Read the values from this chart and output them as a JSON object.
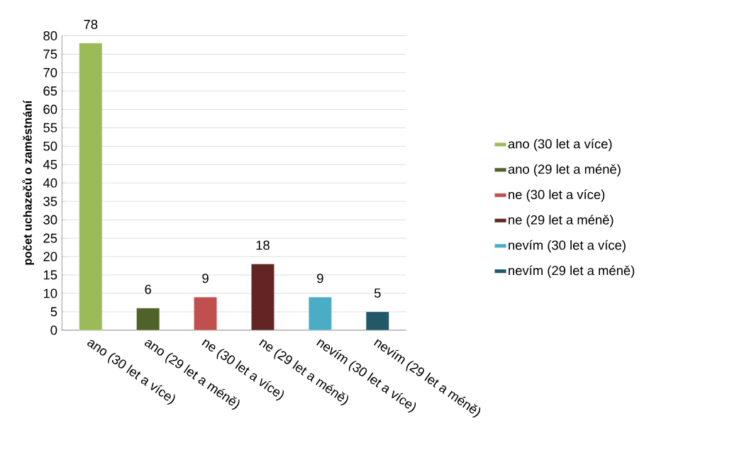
{
  "chart_data": {
    "type": "bar",
    "ylabel": "počet uchazečů o zaměstnání",
    "categories": [
      "ano (30 let a více)",
      "ano (29 let a méně)",
      "ne (30 let a více)",
      "ne (29 let a méně)",
      "nevím (30 let a více)",
      "nevím (29 let a méně)"
    ],
    "series": [
      {
        "name": "ano (30 let a více)",
        "color": "#9bbb59",
        "values": [
          78,
          null,
          null,
          null,
          null,
          null
        ]
      },
      {
        "name": "ano (29 let a méně)",
        "color": "#4f6228",
        "values": [
          null,
          6,
          null,
          null,
          null,
          null
        ]
      },
      {
        "name": "ne (30 let a více)",
        "color": "#c0504d",
        "values": [
          null,
          null,
          9,
          null,
          null,
          null
        ]
      },
      {
        "name": "ne (29 let a méně)",
        "color": "#632523",
        "values": [
          null,
          null,
          null,
          18,
          null,
          null
        ]
      },
      {
        "name": "nevím (30 let a více)",
        "color": "#4bacc6",
        "values": [
          null,
          null,
          null,
          null,
          9,
          null
        ]
      },
      {
        "name": "nevím (29 let a méně)",
        "color": "#215968",
        "values": [
          null,
          null,
          null,
          null,
          null,
          5
        ]
      }
    ],
    "ylim": [
      0,
      80
    ],
    "yticks": [
      0,
      5,
      10,
      15,
      20,
      25,
      30,
      35,
      40,
      45,
      50,
      55,
      60,
      65,
      70,
      75,
      80
    ],
    "grid": "y",
    "legend": "right",
    "data_labels": true
  }
}
